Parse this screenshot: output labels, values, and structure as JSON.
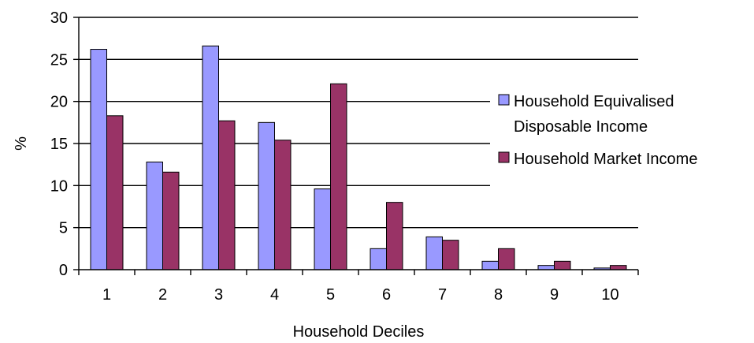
{
  "chart_data": {
    "type": "bar",
    "title": "",
    "xlabel": "Household Deciles",
    "ylabel": "%",
    "categories": [
      "1",
      "2",
      "3",
      "4",
      "5",
      "6",
      "7",
      "8",
      "9",
      "10"
    ],
    "ylim": [
      0,
      30
    ],
    "yticks": [
      "0",
      "5",
      "10",
      "15",
      "20",
      "25",
      "30"
    ],
    "grid": "horizontal major gridlines",
    "legend_position": "right",
    "series": [
      {
        "name": "Household Equivalised Disposable Income",
        "legend_lines": [
          "Household Equivalised",
          "Disposable Income"
        ],
        "color": "#9999ff",
        "values": [
          26.2,
          12.8,
          26.6,
          17.5,
          9.6,
          2.5,
          3.9,
          1.0,
          0.5,
          0.2
        ]
      },
      {
        "name": "Household Market Income",
        "legend_lines": [
          "Household Market Income"
        ],
        "color": "#993366",
        "values": [
          18.3,
          11.6,
          17.7,
          15.4,
          22.1,
          8.0,
          3.5,
          2.5,
          1.0,
          0.5
        ]
      }
    ]
  }
}
